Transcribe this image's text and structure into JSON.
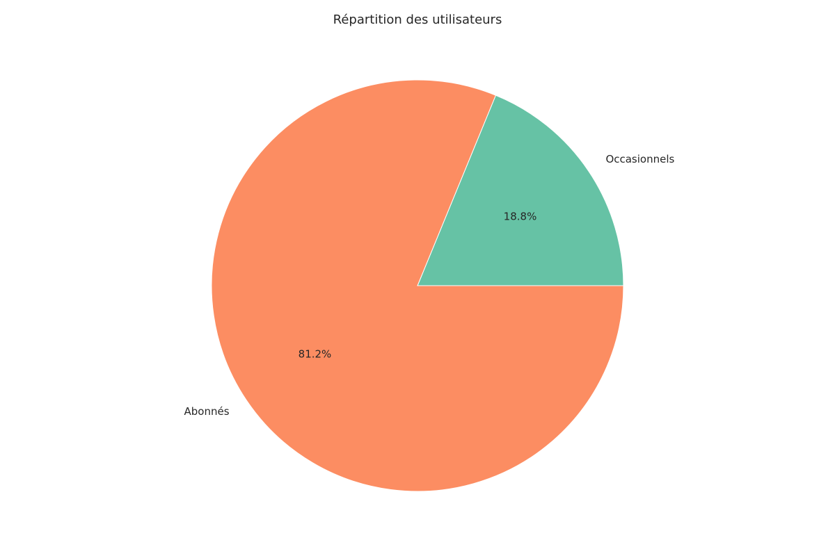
{
  "chart_data": {
    "type": "pie",
    "title": "Répartition des utilisateurs",
    "slices": [
      {
        "label": "Occasionnels",
        "value": 18.8,
        "pct_label": "18.8%",
        "color": "#66c2a5"
      },
      {
        "label": "Abonnés",
        "value": 81.2,
        "pct_label": "81.2%",
        "color": "#fc8d62"
      }
    ],
    "start_angle_deg": 0,
    "direction": "counterclockwise",
    "legend": "none"
  }
}
